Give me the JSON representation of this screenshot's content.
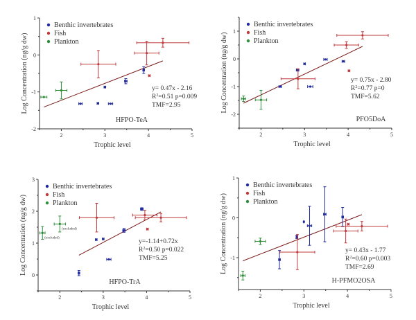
{
  "colors": {
    "benthic": "#1f2a9e",
    "fish": "#c0393b",
    "plankton": "#2e8b3a",
    "regression": "#7a1a1a",
    "axis": "#333333"
  },
  "chart_data": [
    {
      "type": "scatter",
      "title": "HFPO-TeA",
      "xlabel": "Trophic level",
      "ylabel": "Log Concentration (ng/g dw)",
      "xlim": [
        1.5,
        5
      ],
      "ylim": [
        -2,
        1
      ],
      "xticks": [
        2,
        3,
        4,
        5
      ],
      "yticks": [
        -2,
        -1,
        0,
        1
      ],
      "legend": [
        "Benthic invertebrates",
        "Fish",
        "Plankton"
      ],
      "legend_position": "top-left",
      "annotations": [
        "y= 0.47x - 2.16",
        "R2=0.51 p=0.009",
        "TMF=2.95"
      ],
      "regression": {
        "x": [
          1.6,
          4.33
        ],
        "y": [
          -1.41,
          -0.16
        ]
      },
      "series": [
        {
          "name": "Benthic invertebrates",
          "points": [
            {
              "x": 2.44,
              "y": -1.32,
              "xerr": 0.04,
              "yerr": 0.0
            },
            {
              "x": 2.84,
              "y": -1.31,
              "xerr": 0.02,
              "yerr": 0.0
            },
            {
              "x": 3.13,
              "y": -1.32,
              "xerr": 0.05,
              "yerr": 0.0
            },
            {
              "x": 3.0,
              "y": -0.87,
              "xerr": 0.02,
              "yerr": 0.0
            },
            {
              "x": 3.48,
              "y": -0.71,
              "xerr": 0.03,
              "yerr": 0.07
            },
            {
              "x": 3.89,
              "y": -0.41,
              "xerr": 0.02,
              "yerr": 0.09
            }
          ]
        },
        {
          "name": "Fish",
          "points": [
            {
              "x": 2.85,
              "y": -0.25,
              "xerr": 0.4,
              "yerr": 0.37
            },
            {
              "x": 3.96,
              "y": 0.05,
              "xerr": 0.28,
              "yerr": 0.32
            },
            {
              "x": 4.33,
              "y": 0.33,
              "xerr": 0.6,
              "yerr": 0.12
            },
            {
              "x": 4.02,
              "y": -0.56,
              "xerr": 0.02,
              "yerr": 0.0
            }
          ]
        },
        {
          "name": "Plankton",
          "points": [
            {
              "x": 1.6,
              "y": -1.14,
              "xerr": 0.07,
              "yerr": 0.0
            },
            {
              "x": 2.0,
              "y": -0.96,
              "xerr": 0.13,
              "yerr": 0.23
            }
          ]
        }
      ]
    },
    {
      "type": "scatter",
      "title": "PFO5DoA",
      "xlabel": "Trophic level",
      "ylabel": "Log Concentration (ng/g dw)",
      "xlim": [
        1.5,
        5
      ],
      "ylim": [
        -2.5,
        1.5
      ],
      "xticks": [
        2,
        3,
        4,
        5
      ],
      "yticks": [
        -2,
        -1,
        0,
        1
      ],
      "legend": [
        "Benthic invertebrates",
        "Fish",
        "Plankton"
      ],
      "legend_position": "top-left",
      "annotations": [
        "y= 0.75x - 2.80",
        "R2=0.77 p=0",
        "TMF=5.62"
      ],
      "regression": {
        "x": [
          1.6,
          4.33
        ],
        "y": [
          -1.6,
          0.45
        ]
      },
      "series": [
        {
          "name": "Benthic invertebrates",
          "points": [
            {
              "x": 2.44,
              "y": -1.0,
              "xerr": 0.03,
              "yerr": 0.0
            },
            {
              "x": 2.84,
              "y": -0.4,
              "xerr": 0.03,
              "yerr": 0.04
            },
            {
              "x": 3.0,
              "y": -0.18,
              "xerr": 0.02,
              "yerr": 0.0
            },
            {
              "x": 3.13,
              "y": -1.0,
              "xerr": 0.06,
              "yerr": 0.0
            },
            {
              "x": 3.48,
              "y": -0.02,
              "xerr": 0.04,
              "yerr": 0.0
            },
            {
              "x": 3.89,
              "y": -0.09,
              "xerr": 0.03,
              "yerr": 0.0
            }
          ]
        },
        {
          "name": "Fish",
          "points": [
            {
              "x": 2.85,
              "y": -0.72,
              "xerr": 0.39,
              "yerr": 0.36
            },
            {
              "x": 3.96,
              "y": 0.5,
              "xerr": 0.28,
              "yerr": 0.12
            },
            {
              "x": 4.33,
              "y": 0.85,
              "xerr": 0.59,
              "yerr": 0.13
            },
            {
              "x": 4.02,
              "y": -0.43,
              "xerr": 0.02,
              "yerr": 0.0
            }
          ]
        },
        {
          "name": "Plankton",
          "points": [
            {
              "x": 1.6,
              "y": -1.44,
              "xerr": 0.05,
              "yerr": 0.1
            },
            {
              "x": 2.0,
              "y": -1.48,
              "xerr": 0.13,
              "yerr": 0.34
            }
          ]
        }
      ]
    },
    {
      "type": "scatter",
      "title": "HFPO-TrA",
      "xlabel": "Trophic level",
      "ylabel": "Log Concentration (ng/g dw)",
      "xlim": [
        1.5,
        5
      ],
      "ylim": [
        -0.5,
        3
      ],
      "xticks": [
        2,
        3,
        4,
        5
      ],
      "yticks": [
        0,
        1,
        2,
        3
      ],
      "legend": [
        "Benthic invertebrates",
        "Fish",
        "Plankton"
      ],
      "legend_position": "top-left",
      "annotations": [
        "y=-1.14+0.72x",
        "R2=0.50 p=0.022",
        "TMF=5.25"
      ],
      "point_labels": [
        "(excluded)",
        "(excluded)"
      ],
      "regression": {
        "x": [
          2.44,
          4.33
        ],
        "y": [
          0.62,
          1.98
        ]
      },
      "series": [
        {
          "name": "Benthic invertebrates",
          "points": [
            {
              "x": 2.44,
              "y": 0.06,
              "xerr": 0.02,
              "yerr": 0.08
            },
            {
              "x": 2.84,
              "y": 1.11,
              "xerr": 0.02,
              "yerr": 0.0
            },
            {
              "x": 3.0,
              "y": 1.13,
              "xerr": 0.02,
              "yerr": 0.0
            },
            {
              "x": 3.13,
              "y": 0.49,
              "xerr": 0.05,
              "yerr": 0.0
            },
            {
              "x": 3.48,
              "y": 1.4,
              "xerr": 0.03,
              "yerr": 0.06
            },
            {
              "x": 3.89,
              "y": 2.07,
              "xerr": 0.03,
              "yerr": 0.04
            }
          ]
        },
        {
          "name": "Fish",
          "points": [
            {
              "x": 2.85,
              "y": 1.8,
              "xerr": 0.4,
              "yerr": 0.45
            },
            {
              "x": 3.96,
              "y": 1.88,
              "xerr": 0.28,
              "yerr": 0.15
            },
            {
              "x": 4.33,
              "y": 1.8,
              "xerr": 0.59,
              "yerr": 0.13
            },
            {
              "x": 4.02,
              "y": 1.44,
              "xerr": 0.02,
              "yerr": 0.0
            }
          ]
        },
        {
          "name": "Plankton",
          "points": [
            {
              "x": 1.6,
              "y": 1.32,
              "xerr": 0.06,
              "yerr": 0.2,
              "label": "(excluded)"
            },
            {
              "x": 2.0,
              "y": 1.6,
              "xerr": 0.13,
              "yerr": 0.25,
              "label": "(excluded)"
            }
          ]
        }
      ]
    },
    {
      "type": "scatter",
      "title": "H-PFMO2OSA",
      "xlabel": "Trophic level",
      "ylabel": "Log Concentration (ng/g dw)",
      "xlim": [
        1.5,
        5
      ],
      "ylim": [
        -1.8,
        1
      ],
      "xticks": [
        2,
        3,
        4,
        5
      ],
      "yticks": [
        -1,
        0,
        1
      ],
      "legend": [
        "Benthic invertebrates",
        "Fish",
        "Plankton"
      ],
      "legend_position": "top-left",
      "annotations": [
        "y= 0.43x - 1.77",
        "R2=0.60 p=0.003",
        "TMF=2.69"
      ],
      "regression": {
        "x": [
          1.6,
          4.33
        ],
        "y": [
          -1.08,
          0.08
        ]
      },
      "series": [
        {
          "name": "Benthic invertebrates",
          "points": [
            {
              "x": 2.44,
              "y": -1.05,
              "xerr": 0.02,
              "yerr": 0.23
            },
            {
              "x": 2.84,
              "y": -0.48,
              "xerr": 0.02,
              "yerr": 0.04
            },
            {
              "x": 3.0,
              "y": -0.1,
              "xerr": 0.01,
              "yerr": 0.0
            },
            {
              "x": 3.13,
              "y": -0.2,
              "xerr": 0.05,
              "yerr": 0.49
            },
            {
              "x": 3.48,
              "y": 0.09,
              "xerr": 0.03,
              "yerr": 0.69
            },
            {
              "x": 3.89,
              "y": 0.02,
              "xerr": 0.02,
              "yerr": 0.24
            }
          ]
        },
        {
          "name": "Fish",
          "points": [
            {
              "x": 2.85,
              "y": -0.86,
              "xerr": 0.4,
              "yerr": 0.44
            },
            {
              "x": 3.96,
              "y": -0.33,
              "xerr": 0.28,
              "yerr": 0.3
            },
            {
              "x": 4.33,
              "y": -0.21,
              "xerr": 0.59,
              "yerr": 0.12
            },
            {
              "x": 4.02,
              "y": -0.16,
              "xerr": 0.02,
              "yerr": 0.0
            }
          ]
        },
        {
          "name": "Plankton",
          "points": [
            {
              "x": 1.6,
              "y": -1.45,
              "xerr": 0.05,
              "yerr": 0.11
            },
            {
              "x": 2.0,
              "y": -0.59,
              "xerr": 0.12,
              "yerr": 0.08
            }
          ]
        }
      ]
    }
  ]
}
